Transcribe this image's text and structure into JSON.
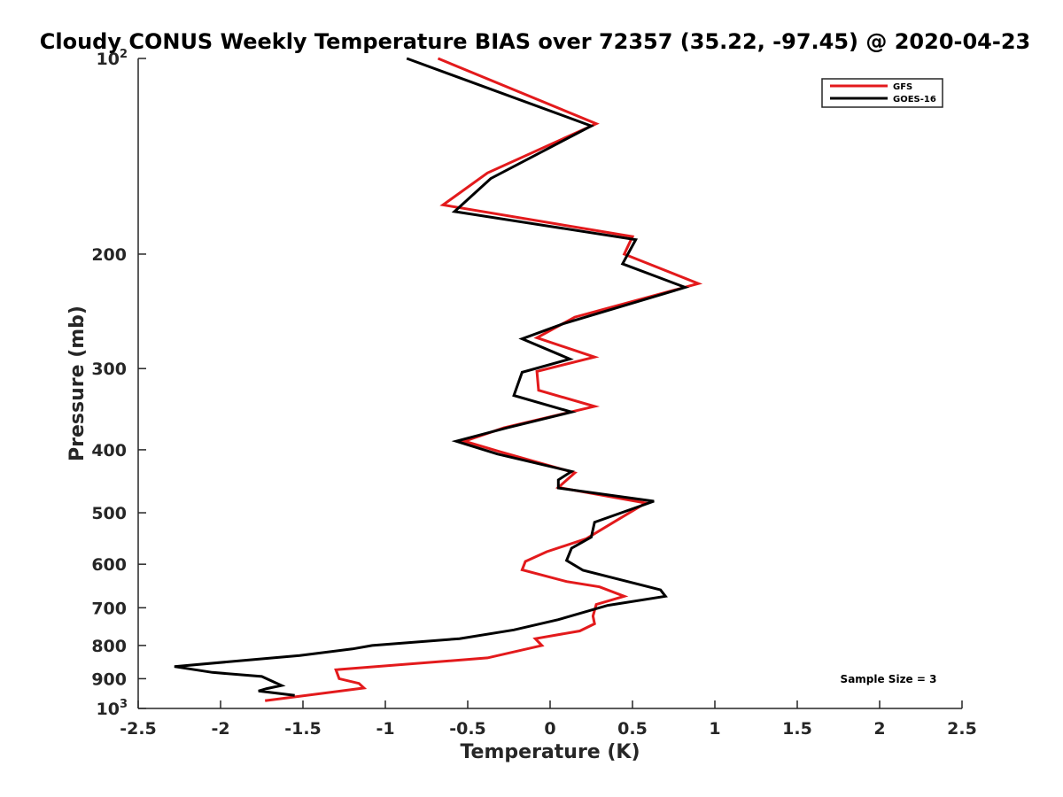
{
  "chart_data": {
    "type": "line",
    "title": "Cloudy CONUS Weekly Temperature BIAS over 72357 (35.22, -97.45) @ 2020-04-23",
    "xlabel": "Temperature (K)",
    "ylabel": "Pressure (mb)",
    "xlim": [
      -2.5,
      2.5
    ],
    "ylim": [
      100,
      1000
    ],
    "y_scale": "log",
    "y_reversed": true,
    "grid": false,
    "legend_position": "top-right",
    "x_ticks": [
      "-2.5",
      "-2",
      "-1.5",
      "-1",
      "-0.5",
      "0",
      "0.5",
      "1",
      "1.5",
      "2",
      "2.5"
    ],
    "y_ticks": [
      {
        "value": 100,
        "label": "10",
        "sup": "2"
      },
      {
        "value": 200,
        "label": "200",
        "sup": ""
      },
      {
        "value": 300,
        "label": "300",
        "sup": ""
      },
      {
        "value": 400,
        "label": "400",
        "sup": ""
      },
      {
        "value": 500,
        "label": "500",
        "sup": ""
      },
      {
        "value": 600,
        "label": "600",
        "sup": ""
      },
      {
        "value": 700,
        "label": "700",
        "sup": ""
      },
      {
        "value": 800,
        "label": "800",
        "sup": ""
      },
      {
        "value": 900,
        "label": "900",
        "sup": ""
      },
      {
        "value": 1000,
        "label": "10",
        "sup": "3"
      }
    ],
    "series": [
      {
        "name": "GFS",
        "color": "#e31a1c",
        "points": [
          [
            -0.68,
            100
          ],
          [
            0.28,
            126
          ],
          [
            -0.38,
            150
          ],
          [
            -0.65,
            168
          ],
          [
            0.5,
            188
          ],
          [
            0.45,
            200
          ],
          [
            0.9,
            222
          ],
          [
            0.15,
            250
          ],
          [
            -0.08,
            269
          ],
          [
            0.27,
            288
          ],
          [
            -0.08,
            303
          ],
          [
            -0.07,
            324
          ],
          [
            0.27,
            343
          ],
          [
            -0.28,
            370
          ],
          [
            -0.52,
            388
          ],
          [
            -0.3,
            403
          ],
          [
            0.15,
            434
          ],
          [
            0.05,
            457
          ],
          [
            0.58,
            483
          ],
          [
            0.38,
            518
          ],
          [
            0.22,
            548
          ],
          [
            -0.02,
            574
          ],
          [
            -0.15,
            594
          ],
          [
            -0.17,
            612
          ],
          [
            0.1,
            638
          ],
          [
            0.3,
            650
          ],
          [
            0.45,
            672
          ],
          [
            0.28,
            692
          ],
          [
            0.26,
            721
          ],
          [
            0.27,
            741
          ],
          [
            0.18,
            760
          ],
          [
            -0.09,
            781
          ],
          [
            -0.05,
            800
          ],
          [
            -0.38,
            836
          ],
          [
            -1.3,
            872
          ],
          [
            -1.28,
            900
          ],
          [
            -1.16,
            915
          ],
          [
            -1.13,
            930
          ],
          [
            -1.73,
            973
          ]
        ]
      },
      {
        "name": "GOES-16",
        "color": "#000000",
        "points": [
          [
            -0.87,
            100
          ],
          [
            0.25,
            127
          ],
          [
            -0.36,
            153
          ],
          [
            -0.58,
            172
          ],
          [
            0.52,
            190
          ],
          [
            0.44,
            207
          ],
          [
            0.82,
            225
          ],
          [
            0.08,
            256
          ],
          [
            -0.17,
            270
          ],
          [
            0.12,
            290
          ],
          [
            -0.17,
            304
          ],
          [
            -0.22,
            330
          ],
          [
            0.13,
            350
          ],
          [
            -0.26,
            370
          ],
          [
            -0.57,
            388
          ],
          [
            -0.32,
            406
          ],
          [
            0.13,
            432
          ],
          [
            0.05,
            445
          ],
          [
            0.05,
            458
          ],
          [
            0.63,
            480
          ],
          [
            0.27,
            517
          ],
          [
            0.25,
            545
          ],
          [
            0.13,
            567
          ],
          [
            0.1,
            592
          ],
          [
            0.2,
            613
          ],
          [
            0.67,
            657
          ],
          [
            0.7,
            672
          ],
          [
            0.35,
            694
          ],
          [
            0.05,
            730
          ],
          [
            -0.22,
            757
          ],
          [
            -0.55,
            781
          ],
          [
            -1.08,
            800
          ],
          [
            -1.2,
            810
          ],
          [
            -1.52,
            829
          ],
          [
            -2.28,
            862
          ],
          [
            -2.05,
            880
          ],
          [
            -1.75,
            893
          ],
          [
            -1.63,
            922
          ],
          [
            -1.72,
            932
          ],
          [
            -1.77,
            940
          ],
          [
            -1.55,
            955
          ]
        ]
      }
    ],
    "annotations": [
      {
        "text": "Sample Size = 3"
      }
    ]
  }
}
